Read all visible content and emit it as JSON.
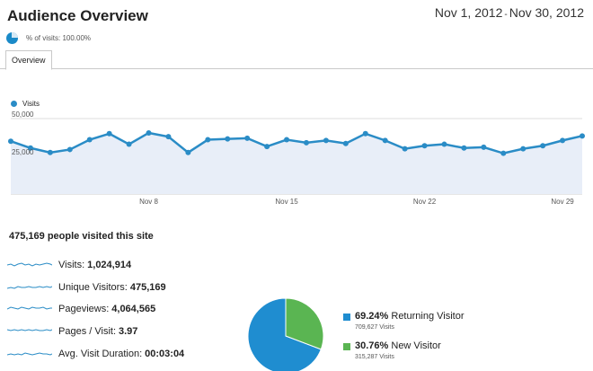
{
  "header": {
    "title": "Audience Overview",
    "date_start": "Nov 1, 2012",
    "date_sep": "-",
    "date_end": "Nov 30, 2012"
  },
  "segment": {
    "label": "% of visits: 100.00%"
  },
  "tabs": [
    {
      "label": "Overview"
    }
  ],
  "chart_data": {
    "type": "area",
    "series": [
      {
        "name": "Visits",
        "x": [
          "Nov 1",
          "Nov 2",
          "Nov 3",
          "Nov 4",
          "Nov 5",
          "Nov 6",
          "Nov 7",
          "Nov 8",
          "Nov 9",
          "Nov 10",
          "Nov 11",
          "Nov 12",
          "Nov 13",
          "Nov 14",
          "Nov 15",
          "Nov 16",
          "Nov 17",
          "Nov 18",
          "Nov 19",
          "Nov 20",
          "Nov 21",
          "Nov 22",
          "Nov 23",
          "Nov 24",
          "Nov 25",
          "Nov 26",
          "Nov 27",
          "Nov 28",
          "Nov 29",
          "Nov 30"
        ],
        "values": [
          35000,
          30500,
          27500,
          29500,
          36000,
          40000,
          33000,
          40500,
          38000,
          27500,
          36000,
          36500,
          37000,
          31500,
          36000,
          34000,
          35500,
          33500,
          40000,
          35500,
          30000,
          32000,
          33000,
          30500,
          31000,
          27000,
          30000,
          32000,
          35500,
          38500
        ]
      }
    ],
    "yticks": [
      "50,000",
      "25,000"
    ],
    "ylim": [
      0,
      50000
    ],
    "xtick_labels": [
      {
        "label": "Nov 8",
        "index": 7
      },
      {
        "label": "Nov 15",
        "index": 14
      },
      {
        "label": "Nov 22",
        "index": 21
      },
      {
        "label": "Nov 29",
        "index": 28
      }
    ],
    "legend_label": "Visits",
    "colors": {
      "line": "#2a8cc6",
      "fill": "#e8eef8",
      "grid": "#dddddd"
    }
  },
  "summary": {
    "headline": "475,169 people visited this site",
    "metrics": [
      {
        "label": "Visits:",
        "value": "1,024,914"
      },
      {
        "label": "Unique Visitors:",
        "value": "475,169"
      },
      {
        "label": "Pageviews:",
        "value": "4,064,565"
      },
      {
        "label": "Pages / Visit:",
        "value": "3.97"
      },
      {
        "label": "Avg. Visit Duration:",
        "value": "00:03:04"
      }
    ]
  },
  "pie": {
    "slices": [
      {
        "name": "Returning Visitor",
        "percent": 69.24,
        "percent_label": "69.24%",
        "count_label": "709,627 Visits",
        "color": "#1f8dd0"
      },
      {
        "name": "New Visitor",
        "percent": 30.76,
        "percent_label": "30.76%",
        "count_label": "315,287 Visits",
        "color": "#5ab552"
      }
    ]
  }
}
